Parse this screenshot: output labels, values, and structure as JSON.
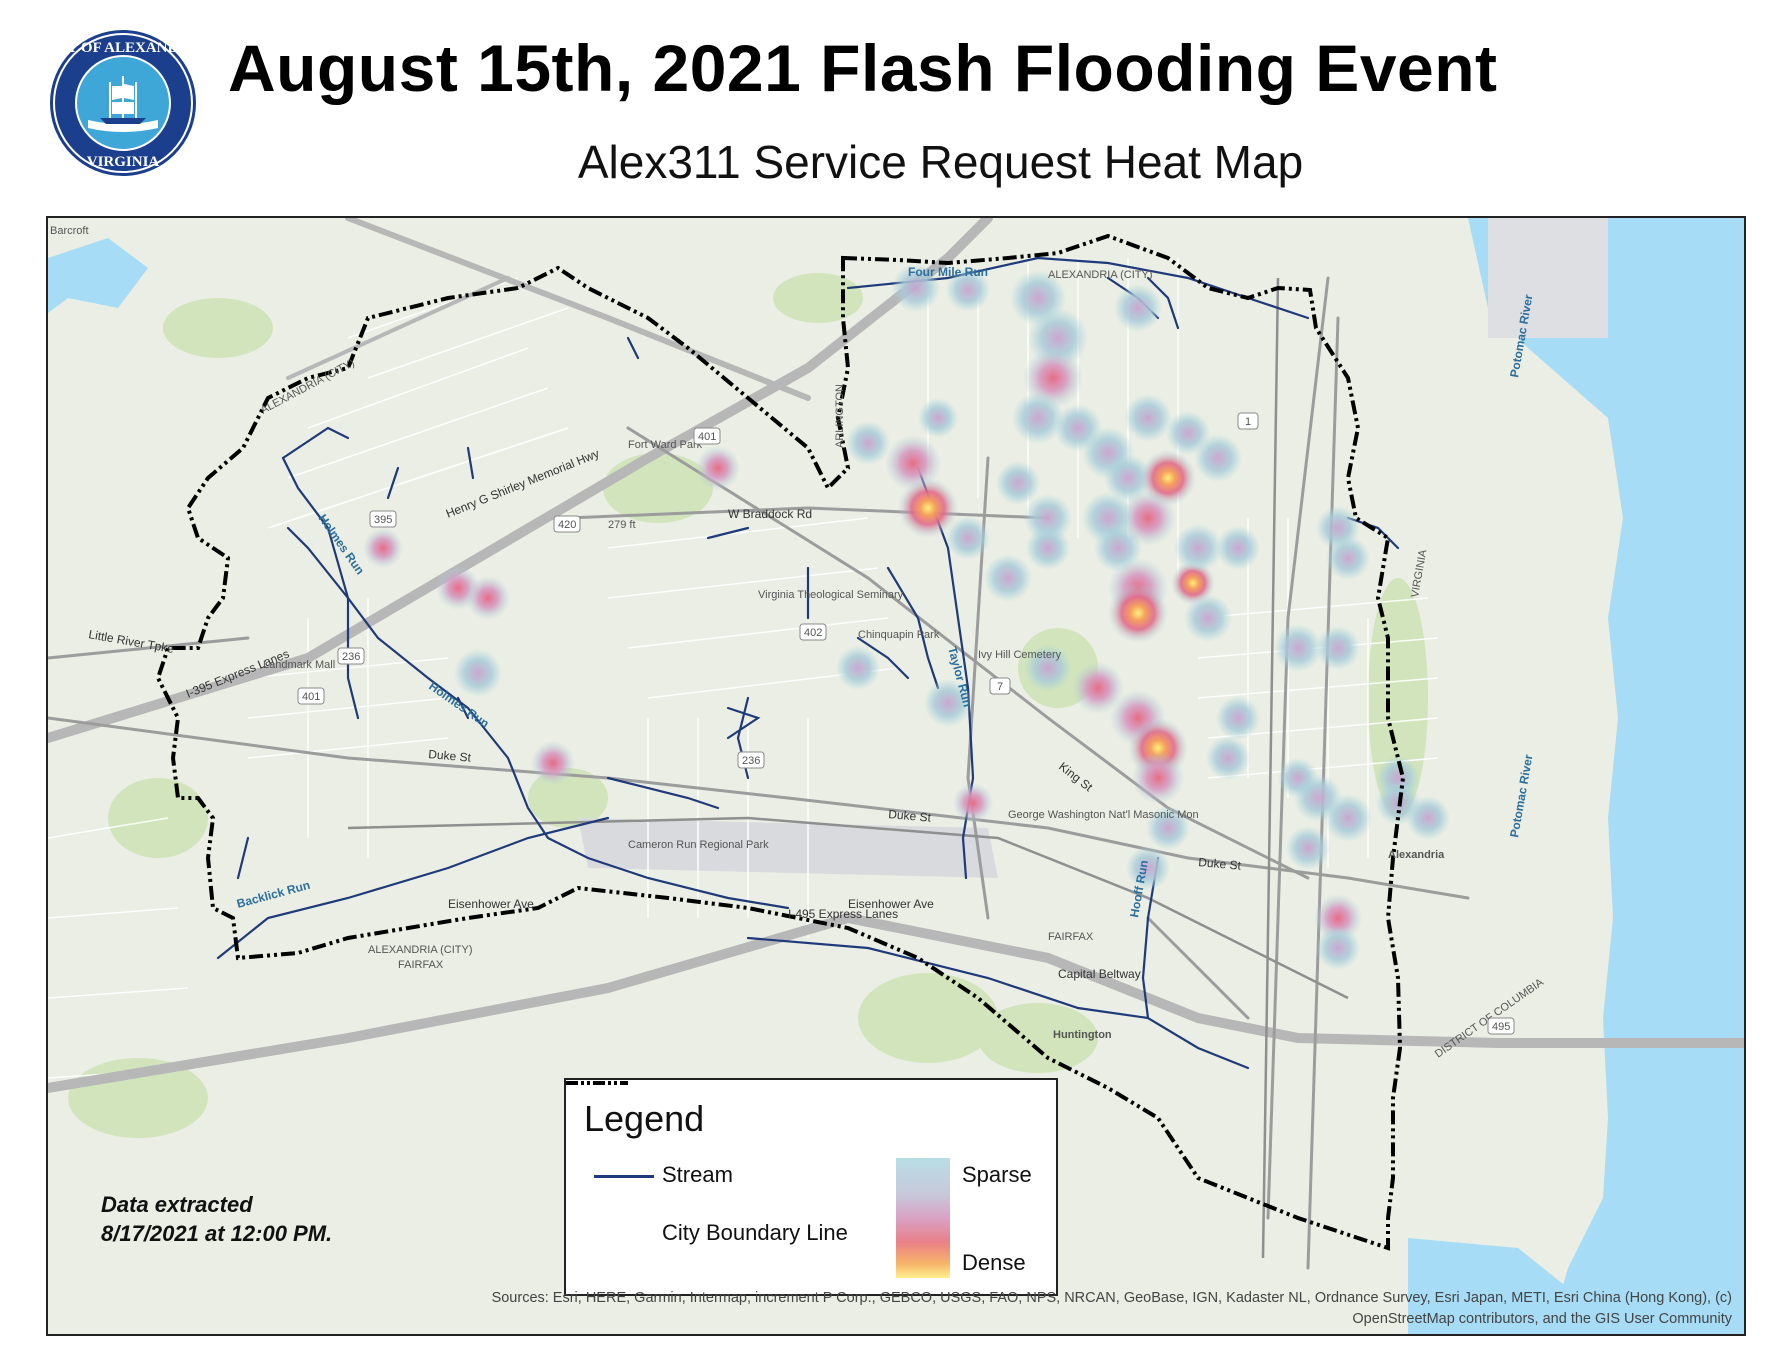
{
  "header": {
    "title": "August 15th, 2021 Flash Flooding Event",
    "subtitle": "Alex311 Service Request Heat Map",
    "seal_text": [
      "CITY OF ALEXANDRIA",
      "VIRGINIA"
    ]
  },
  "legend": {
    "title": "Legend",
    "stream_label": "Stream",
    "boundary_label": "City Boundary Line",
    "sparse_label": "Sparse",
    "dense_label": "Dense"
  },
  "extract_note": [
    "Data extracted",
    "8/17/2021 at 12:00 PM."
  ],
  "sources": [
    "Sources: Esri, HERE, Garmin, Intermap, increment P Corp., GEBCO, USGS, FAO, NPS, NRCAN, GeoBase, IGN, Kadaster NL, Ordnance Survey, Esri Japan, METI, Esri China (Hong Kong), (c)",
    "OpenStreetMap contributors, and the GIS User Community"
  ],
  "map_labels": {
    "barcroft": "Barcroft",
    "alexandria_city": "ALEXANDRIA (CITY)",
    "alexandria": "Alexandria",
    "arlington": "ARLINGTON",
    "virginia": "VIRGINIA",
    "fairfax": "FAIRFAX",
    "huntington": "Huntington",
    "district": "DISTRICT OF COLUMBIA",
    "potomac": "Potomac River",
    "four_mile_run": "Four Mile Run",
    "holmes_run": "Holmes Run",
    "backlick_run": "Backlick Run",
    "taylor_run": "Taylor Run",
    "hooff_run": "Hooff Run",
    "duke_st": "Duke St",
    "king_st": "King St",
    "eisenhower_ave": "Eisenhower Ave",
    "braddock_rd": "W Braddock Rd",
    "shirley_hwy": "Henry G Shirley Memorial Hwy",
    "little_river": "Little River Tpke",
    "express_lanes": "I-395 Express Lanes",
    "i495_express": "I-495 Express Lanes",
    "capital_beltway": "Capital Beltway",
    "landmark_mall": "Landmark Mall",
    "vts": "Virginia Theological Seminary",
    "ivy_hill": "Ivy Hill Cemetery",
    "gw_masonic": "George Washington Nat'l Masonic Mon",
    "cameron_run_park": "Cameron Run Regional Park",
    "fort_ward_park": "Fort Ward Park",
    "chinquapin_park": "Chinquapin Park",
    "elevation": "279 ft",
    "route_395": "395",
    "route_495": "495",
    "route_236": "236",
    "route_1": "1",
    "route_7": "7",
    "route_420": "420",
    "route_401": "401",
    "route_402": "402"
  },
  "heatmap": {
    "description_colors": {
      "sparse": "#9fd0da",
      "mid": "#d9a2c5",
      "dense_red": "#e06a78",
      "dense_yellow": "#fff07a"
    }
  },
  "colors": {
    "stream": "#1f3a7a",
    "boundary": "#000000",
    "water": "#a6dcf5",
    "land": "#e9ede3",
    "park": "#cfe3b8"
  }
}
